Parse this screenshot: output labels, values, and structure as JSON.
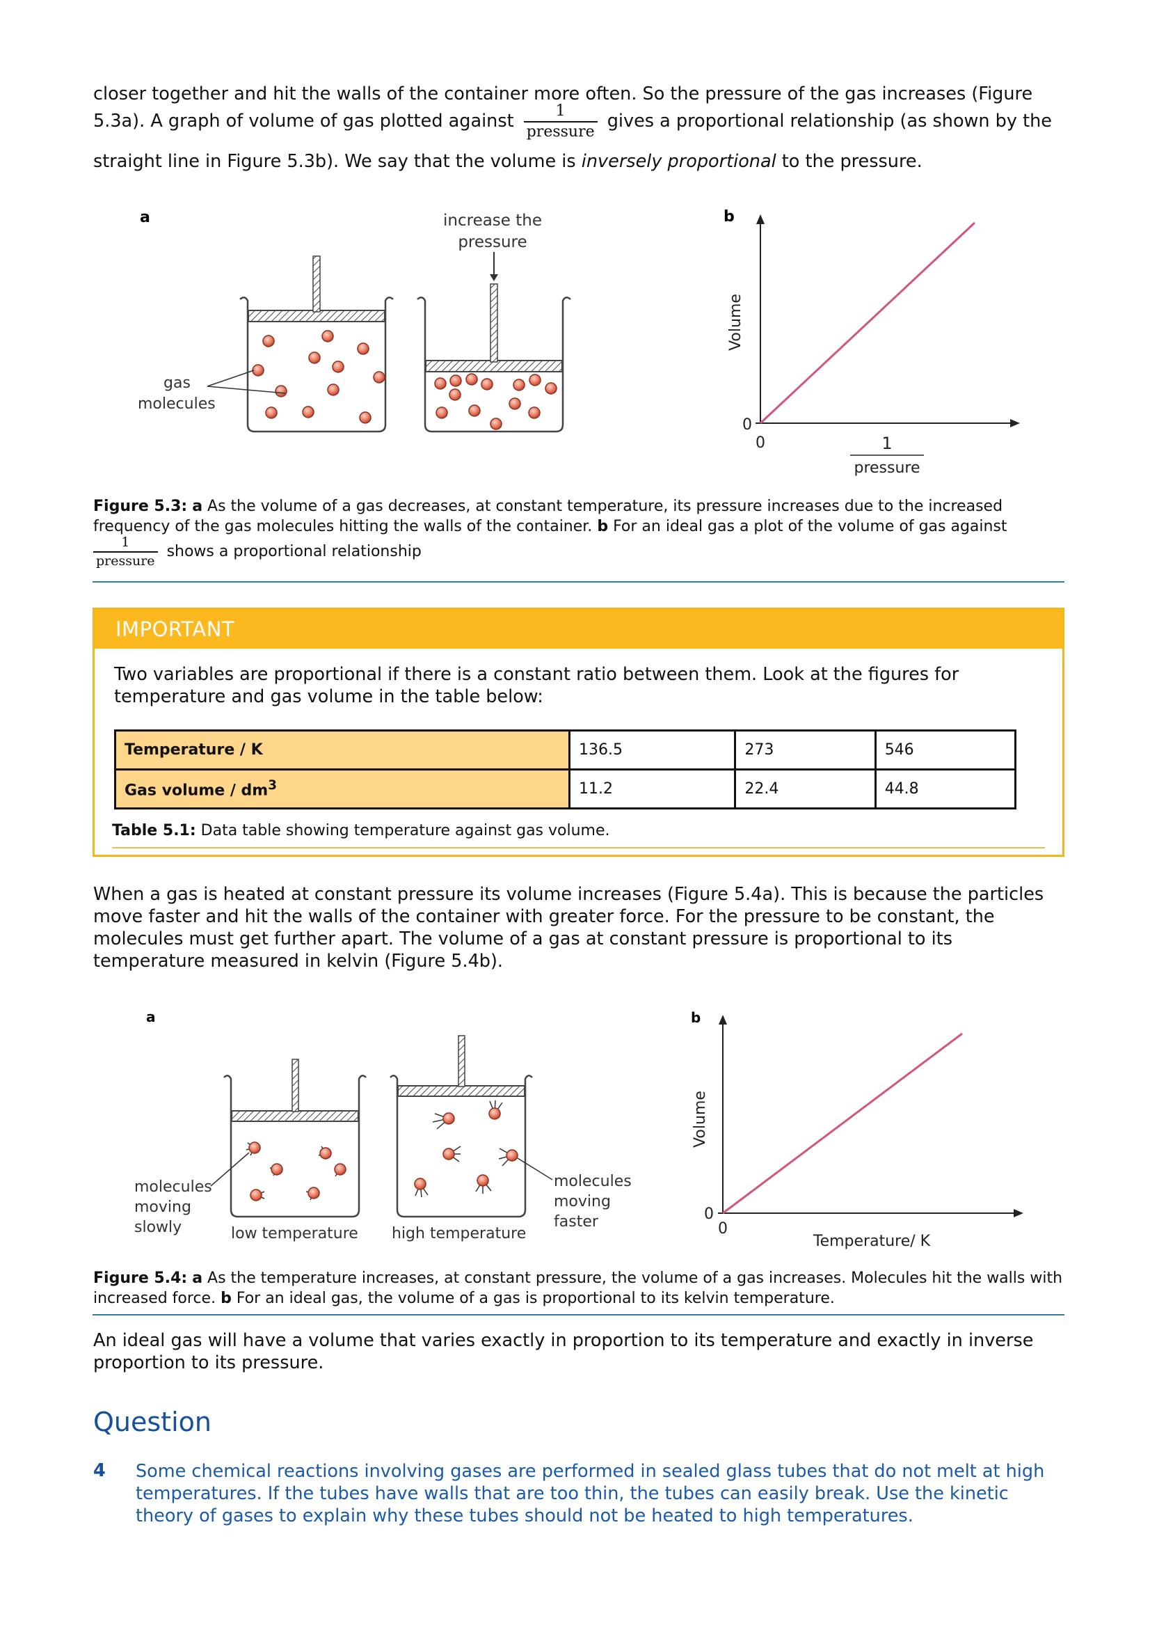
{
  "intro": {
    "line1": "closer together and hit the walls of the container more often. So the pressure of the gas increases (Figure",
    "line2_before": "5.3a). A graph of volume of gas plotted against",
    "line2_after": "gives a proportional relationship (as shown by the",
    "line3_before": "straight line in Figure 5.3b). We say that the volume is",
    "line3_italic": "inversely proportional",
    "line3_after": "to the pressure."
  },
  "fraction": {
    "numerator": "1",
    "denominator": "pressure"
  },
  "figure_5_3": {
    "label_a": "a",
    "label_b": "b",
    "increase_line1": "increase the",
    "increase_line2": "pressure",
    "gas_line1": "gas",
    "gas_line2": "molecules",
    "y_axis_label": "Volume",
    "origin_y": "0",
    "origin_x": "0",
    "x_axis_num": "1",
    "x_axis_den": "pressure",
    "line_color": "#d0577a"
  },
  "caption_5_3": {
    "label": "Figure 5.3:",
    "bold_a": "a",
    "text1": "As the volume of a gas decreases, at constant temperature, its pressure increases due to the increased frequency of the gas molecules hitting the walls of the container.",
    "bold_b": "b",
    "text2": "For an ideal gas a plot of the volume of gas against",
    "text3": "shows a proportional relationship"
  },
  "important": {
    "heading": "IMPORTANT",
    "text": "Two variables are proportional if there is a constant ratio between them. Look at the figures for temperature and gas volume in the table below:",
    "table": {
      "row1_header": "Temperature / K",
      "row1": [
        "136.5",
        "273",
        "546"
      ],
      "row2_header": "Gas volume / dm",
      "row2_header_sup": "3",
      "row2": [
        "11.2",
        "22.4",
        "44.8"
      ]
    },
    "caption_label": "Table 5.1:",
    "caption_text": "Data table showing temperature against gas volume."
  },
  "para2": "When a gas is heated at constant pressure its volume increases (Figure 5.4a). This is because the particles move faster and hit the walls of the container with greater force. For the pressure to be constant, the molecules must get further apart. The volume of a gas at constant pressure is proportional to its temperature measured in kelvin (Figure 5.4b).",
  "figure_5_4": {
    "label_a": "a",
    "label_b": "b",
    "slow_line1": "molecules",
    "slow_line2": "moving",
    "slow_line3": "slowly",
    "fast_line1": "molecules",
    "fast_line2": "moving",
    "fast_line3": "faster",
    "low_temp": "low temperature",
    "high_temp": "high temperature",
    "y_axis_label": "Volume",
    "origin_y": "0",
    "origin_x": "0",
    "x_axis_label": "Temperature/ K"
  },
  "caption_5_4": {
    "label": "Figure 5.4:",
    "bold_a": "a",
    "text1": "As the temperature increases, at constant pressure, the volume of a gas increases. Molecules hit the walls with increased force.",
    "bold_b": "b",
    "text2": "For an ideal gas, the volume of a gas is proportional to its kelvin temperature."
  },
  "para3": "An ideal gas will have a volume that varies exactly in proportion to its temperature and exactly in inverse proportion to its pressure.",
  "question": {
    "title": "Question",
    "number": "4",
    "text": "Some chemical reactions involving gases are performed in sealed glass tubes that do not melt at high temperatures. If the tubes have walls that are too thin, the tubes can easily break. Use the kinetic theory of gases to explain why these tubes should not be heated to high temperatures."
  }
}
